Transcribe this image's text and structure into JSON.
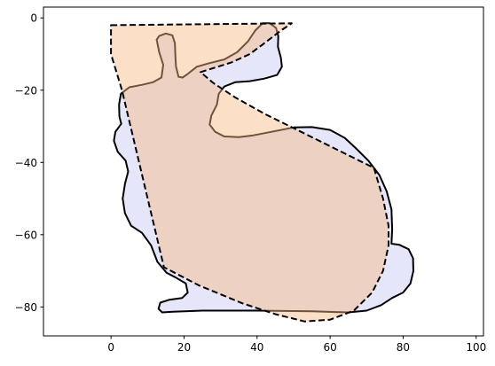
{
  "chart_data": {
    "type": "area",
    "title": "",
    "xlabel": "",
    "ylabel": "",
    "xlim": [
      -18.5,
      102
    ],
    "ylim": [
      -88,
      3
    ],
    "xticks": [
      0,
      20,
      40,
      60,
      80,
      100
    ],
    "yticks": [
      0,
      -20,
      -40,
      -60,
      -80
    ],
    "xtick_labels": [
      "0",
      "20",
      "40",
      "60",
      "80",
      "100"
    ],
    "ytick_labels": [
      "0",
      "−20",
      "−40",
      "−60",
      "−80"
    ],
    "grid": false,
    "series": [
      {
        "style": "solid",
        "fill": "#e6e6fa",
        "stroke": "#000000",
        "points": [
          [
            41.5,
            -1.5
          ],
          [
            43.5,
            -1.5
          ],
          [
            45.2,
            -2.8
          ],
          [
            45.8,
            -5
          ],
          [
            45.7,
            -8
          ],
          [
            46.5,
            -11
          ],
          [
            46.8,
            -13.5
          ],
          [
            45.5,
            -15.8
          ],
          [
            42,
            -16.8
          ],
          [
            38,
            -17.5
          ],
          [
            34,
            -17.8
          ],
          [
            31,
            -19
          ],
          [
            29.5,
            -21
          ],
          [
            29,
            -24
          ],
          [
            27.5,
            -27
          ],
          [
            27,
            -29.5
          ],
          [
            28.5,
            -31.5
          ],
          [
            31,
            -32.8
          ],
          [
            35,
            -33
          ],
          [
            39,
            -32.5
          ],
          [
            44,
            -31.5
          ],
          [
            50,
            -30.3
          ],
          [
            55,
            -30.2
          ],
          [
            60,
            -31
          ],
          [
            64,
            -33.2
          ],
          [
            67,
            -36
          ],
          [
            70.5,
            -39.5
          ],
          [
            73.5,
            -43.5
          ],
          [
            75.5,
            -48
          ],
          [
            76.8,
            -53
          ],
          [
            77,
            -58.5
          ],
          [
            76.8,
            -62.5
          ],
          [
            79,
            -62.8
          ],
          [
            81.5,
            -64
          ],
          [
            82.7,
            -66.5
          ],
          [
            82.8,
            -70
          ],
          [
            82,
            -73.5
          ],
          [
            80,
            -76
          ],
          [
            77,
            -77.5
          ],
          [
            74,
            -79.5
          ],
          [
            70,
            -81
          ],
          [
            65,
            -81.5
          ],
          [
            55,
            -81.2
          ],
          [
            40,
            -81
          ],
          [
            25,
            -81
          ],
          [
            17,
            -81.3
          ],
          [
            14,
            -81.5
          ],
          [
            13,
            -80.5
          ],
          [
            13.5,
            -78.8
          ],
          [
            16,
            -78
          ],
          [
            19.5,
            -77.5
          ],
          [
            21,
            -76
          ],
          [
            20.5,
            -73.5
          ],
          [
            18,
            -72
          ],
          [
            15.2,
            -70.5
          ],
          [
            12.7,
            -67.5
          ],
          [
            11,
            -63
          ],
          [
            8.5,
            -59.5
          ],
          [
            5.5,
            -57.5
          ],
          [
            3.8,
            -54
          ],
          [
            3.2,
            -50
          ],
          [
            3.8,
            -46
          ],
          [
            4.7,
            -42.5
          ],
          [
            4,
            -39.5
          ],
          [
            1.8,
            -37
          ],
          [
            0.8,
            -34
          ],
          [
            1.2,
            -31.5
          ],
          [
            2.8,
            -29.3
          ],
          [
            2.3,
            -27.3
          ],
          [
            2.2,
            -24
          ],
          [
            2.7,
            -21
          ],
          [
            5,
            -19.2
          ],
          [
            8.5,
            -18.5
          ],
          [
            11.5,
            -17.8
          ],
          [
            13.8,
            -16.5
          ],
          [
            14.3,
            -13
          ],
          [
            13.2,
            -9.5
          ],
          [
            12.5,
            -6
          ],
          [
            13.2,
            -5
          ],
          [
            15,
            -4.3
          ],
          [
            16.8,
            -4.8
          ],
          [
            17.5,
            -7
          ],
          [
            17.6,
            -10
          ],
          [
            17.8,
            -13.5
          ],
          [
            18.5,
            -16.3
          ],
          [
            19.6,
            -16.5
          ],
          [
            21,
            -15.5
          ],
          [
            23.5,
            -13.5
          ],
          [
            27,
            -12.5
          ],
          [
            31,
            -11.5
          ],
          [
            34.5,
            -9.5
          ],
          [
            37.5,
            -6.5
          ],
          [
            39.5,
            -3.5
          ]
        ]
      },
      {
        "style": "dashed",
        "fill": "#f7b780",
        "stroke": "#000000",
        "points": [
          [
            0,
            -2
          ],
          [
            49.5,
            -1.5
          ],
          [
            46.5,
            -3.5
          ],
          [
            42,
            -7
          ],
          [
            38,
            -10
          ],
          [
            33,
            -12.3
          ],
          [
            24.5,
            -15
          ],
          [
            28,
            -18
          ],
          [
            34,
            -22
          ],
          [
            42,
            -26.5
          ],
          [
            50,
            -30.5
          ],
          [
            58,
            -34.5
          ],
          [
            65,
            -38
          ],
          [
            72,
            -41.5
          ],
          [
            74.5,
            -50
          ],
          [
            76,
            -57.5
          ],
          [
            76,
            -63
          ],
          [
            74.5,
            -70
          ],
          [
            71.5,
            -76
          ],
          [
            66.5,
            -81
          ],
          [
            60,
            -83.5
          ],
          [
            53,
            -84
          ],
          [
            45,
            -82
          ],
          [
            36,
            -79
          ],
          [
            24,
            -74
          ],
          [
            14.5,
            -69
          ],
          [
            3,
            -20
          ],
          [
            0,
            -10
          ]
        ]
      }
    ]
  }
}
